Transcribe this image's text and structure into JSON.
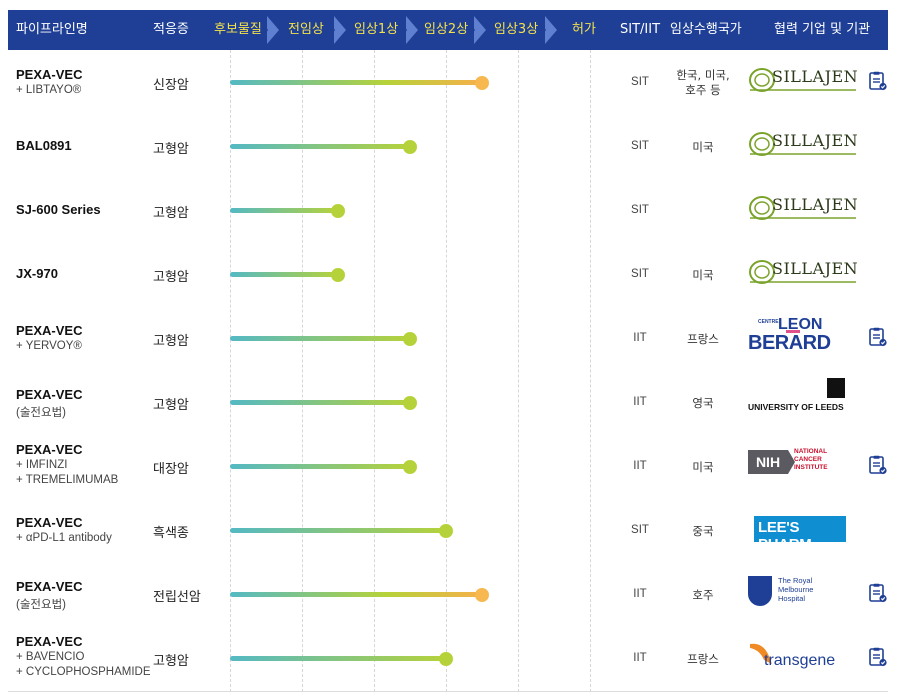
{
  "header": {
    "pipeline_name": "파이프라인명",
    "indication": "적응증",
    "stages": [
      "후보물질",
      "전임상",
      "임상1상",
      "임상2상",
      "임상3상",
      "허가"
    ],
    "sit_iit": "SIT/IIT",
    "countries": "임상수행국가",
    "partners": "협력 기업 및 기관"
  },
  "colors": {
    "header_bg": "#1f3f96",
    "stage_text": "#f3e24a",
    "bar_start": "#54b9c4",
    "bar_mid": "#b6d23a",
    "bar_end_orange": "#f6b04a",
    "dot_green": "#b6d23a",
    "dot_orange": "#f6b84f"
  },
  "rows": [
    {
      "name": "PEXA-VEC",
      "subs": [
        "+ LIBTAYO®"
      ],
      "indication": "신장암",
      "progress_stage": 3.5,
      "dot_color": "orange",
      "sit_iit": "SIT",
      "country": "한국, 미국,\n호주 등",
      "partner": "SILLAJEN",
      "partner_logo": "sillajen-logo",
      "has_doc": true
    },
    {
      "name": "BAL0891",
      "subs": [],
      "indication": "고형암",
      "progress_stage": 2.5,
      "dot_color": "green",
      "sit_iit": "SIT",
      "country": "미국",
      "partner": "SILLAJEN",
      "partner_logo": "sillajen-logo",
      "has_doc": false
    },
    {
      "name": "SJ-600 Series",
      "subs": [],
      "indication": "고형암",
      "progress_stage": 1.5,
      "dot_color": "green",
      "sit_iit": "SIT",
      "country": "",
      "partner": "SILLAJEN",
      "partner_logo": "sillajen-logo",
      "has_doc": false
    },
    {
      "name": "JX-970",
      "subs": [],
      "indication": "고형암",
      "progress_stage": 1.5,
      "dot_color": "green",
      "sit_iit": "SIT",
      "country": "미국",
      "partner": "SILLAJEN",
      "partner_logo": "sillajen-logo",
      "has_doc": false
    },
    {
      "name": "PEXA-VEC",
      "subs": [
        "+ YERVOY®"
      ],
      "indication": "고형암",
      "progress_stage": 2.5,
      "dot_color": "green",
      "sit_iit": "IIT",
      "country": "프랑스",
      "partner": "LEON BERARD",
      "partner_top": "CENTRE",
      "partner_logo": "leon-berard-logo",
      "has_doc": true
    },
    {
      "name": "PEXA-VEC",
      "subs": [
        "(술전요법)"
      ],
      "indication": "고형암",
      "progress_stage": 2.5,
      "dot_color": "green",
      "sit_iit": "IIT",
      "country": "영국",
      "partner": "UNIVERSITY OF LEEDS",
      "partner_logo": "university-of-leeds-logo",
      "has_doc": false
    },
    {
      "name": "PEXA-VEC",
      "subs": [
        "+ IMFINZI",
        "+ TREMELIMUMAB"
      ],
      "indication": "대장암",
      "progress_stage": 2.5,
      "dot_color": "green",
      "sit_iit": "IIT",
      "country": "미국",
      "partner": "NIH",
      "partner_lines": [
        "NATIONAL",
        "CANCER",
        "INSTITUTE"
      ],
      "partner_logo": "nih-nci-logo",
      "has_doc": true
    },
    {
      "name": "PEXA-VEC",
      "subs": [
        "+ αPD-L1 antibody"
      ],
      "indication": "흑색종",
      "progress_stage": 3.0,
      "dot_color": "green",
      "sit_iit": "SIT",
      "country": "중국",
      "partner": "LEE'S PHARM.",
      "partner_logo": "lees-pharm-logo",
      "has_doc": false
    },
    {
      "name": "PEXA-VEC",
      "subs": [
        "(술전요법)"
      ],
      "indication": "전립선암",
      "progress_stage": 3.5,
      "dot_color": "orange",
      "sit_iit": "IIT",
      "country": "호주",
      "partner_lines": [
        "The Royal",
        "Melbourne",
        "Hospital"
      ],
      "partner_logo": "royal-melbourne-hospital-logo",
      "has_doc": true
    },
    {
      "name": "PEXA-VEC",
      "subs": [
        "+ BAVENCIO",
        "+ CYCLOPHOSPHAMIDE"
      ],
      "indication": "고형암",
      "progress_stage": 3.0,
      "dot_color": "green",
      "sit_iit": "IIT",
      "country": "프랑스",
      "partner": "transgene",
      "partner_logo": "transgene-logo",
      "has_doc": true
    }
  ]
}
